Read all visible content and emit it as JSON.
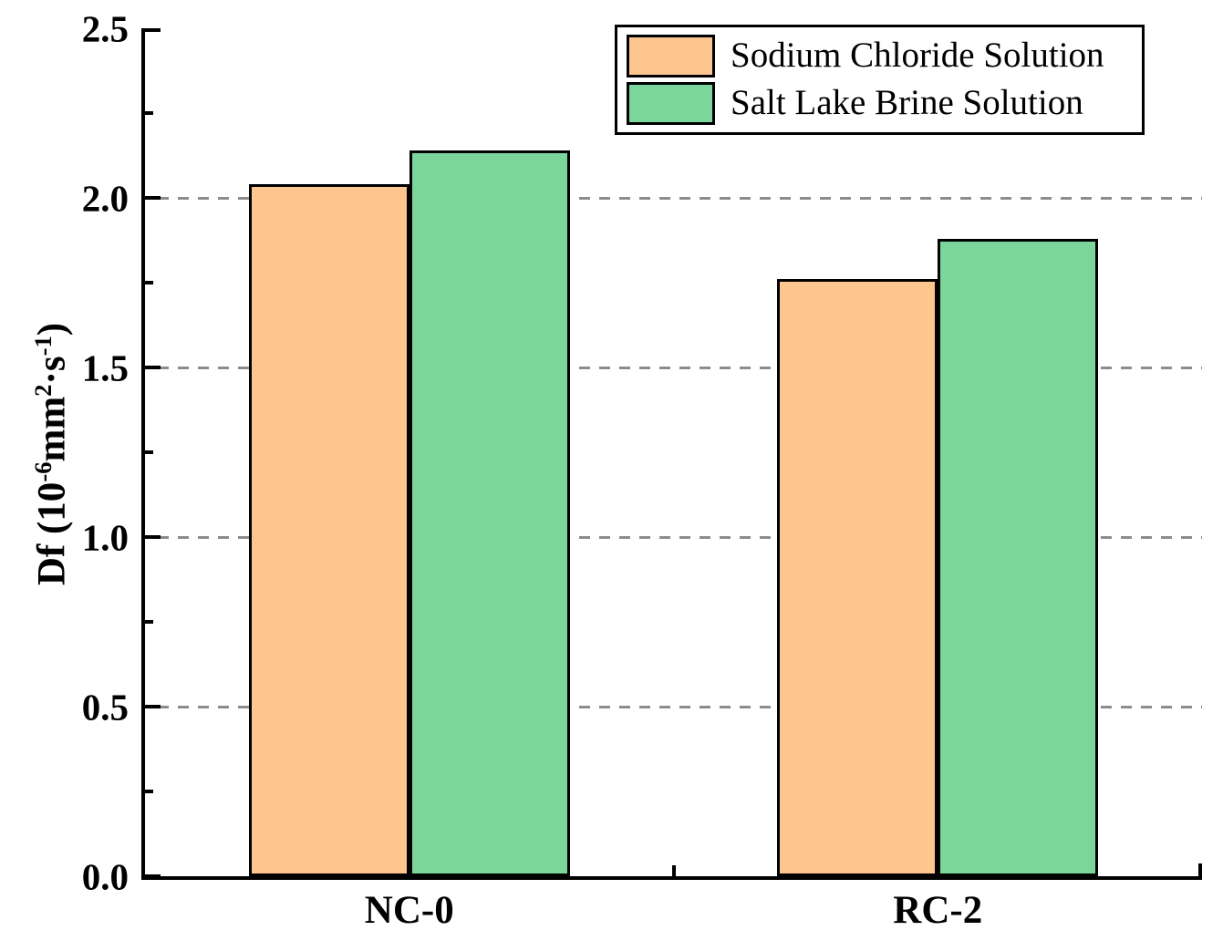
{
  "chart_data": {
    "type": "bar",
    "title": "",
    "xlabel": "",
    "ylabel": "Df (10⁻⁶mm²·s⁻¹)",
    "ylabel_segments": [
      {
        "t": "Df (10"
      },
      {
        "t": "-6",
        "sup": true
      },
      {
        "t": "mm"
      },
      {
        "t": "2",
        "sup": true
      },
      {
        "t": "·s"
      },
      {
        "t": "-1",
        "sup": true
      },
      {
        "t": ")"
      }
    ],
    "categories": [
      "NC-0",
      "RC-2"
    ],
    "series": [
      {
        "name": "Sodium Chloride Solution",
        "color": "#FDC68F",
        "values": [
          2.04,
          1.76
        ]
      },
      {
        "name": "Salt Lake Brine Solution",
        "color": "#7CD69B",
        "values": [
          2.14,
          1.88
        ]
      }
    ],
    "ylim": [
      0,
      2.5
    ],
    "yticks": [
      "0.0",
      "0.5",
      "1.0",
      "1.5",
      "2.0",
      "2.5"
    ],
    "minor_yticks": [
      0.25,
      0.75,
      1.25,
      1.75,
      2.25
    ],
    "grid": {
      "lines": [
        0.5,
        1.0,
        1.5,
        2.0
      ],
      "style": "dashed",
      "color": "#8c8c8c",
      "orientation": "horizontal"
    },
    "legend": {
      "position": "top-right",
      "border": true
    },
    "bar_border_color": "#000000",
    "axis_color": "#000000"
  }
}
